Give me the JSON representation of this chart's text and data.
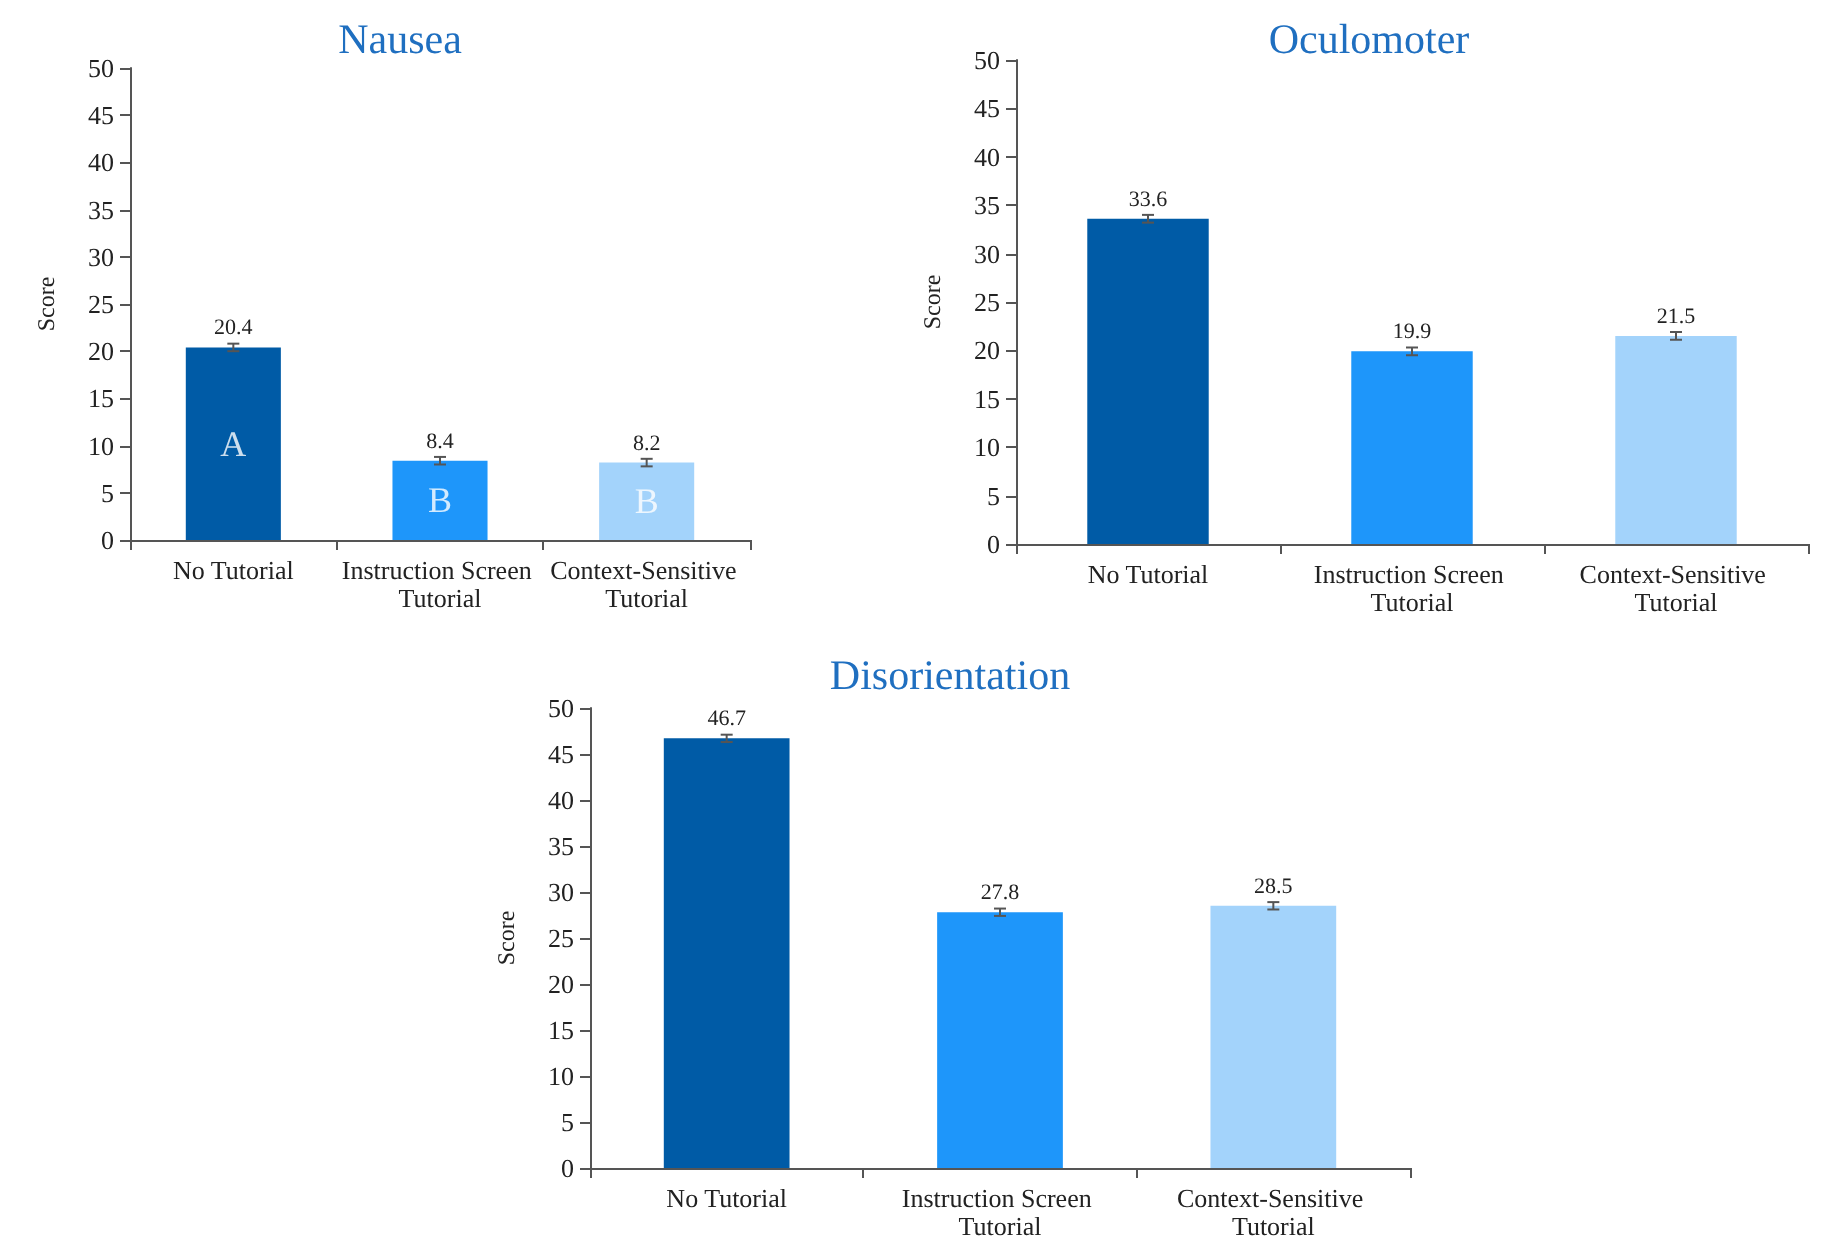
{
  "chart_data": [
    {
      "type": "bar",
      "title": "Nausea",
      "ylabel": "Score",
      "categories": [
        "No Tutorial",
        "Instruction Screen Tutorial",
        "Context-Sensitive Tutorial"
      ],
      "values": [
        20.4,
        8.4,
        8.2
      ],
      "errors": [
        0.4,
        0.4,
        0.4
      ],
      "colors": [
        "#005ba6",
        "#1e96fa",
        "#a3d3fb"
      ],
      "ylim": [
        0,
        50
      ],
      "yticks": [
        0,
        5,
        10,
        15,
        20,
        25,
        30,
        35,
        40,
        45,
        50
      ],
      "data_labels": true,
      "annotations": [
        "A",
        "B",
        "B"
      ]
    },
    {
      "type": "bar",
      "title": "Oculomoter",
      "ylabel": "Score",
      "categories": [
        "No Tutorial",
        "Instruction Screen Tutorial",
        "Context-Sensitive Tutorial"
      ],
      "values": [
        33.6,
        19.9,
        21.5
      ],
      "errors": [
        0.4,
        0.4,
        0.4
      ],
      "colors": [
        "#005ba6",
        "#1e96fa",
        "#a3d3fb"
      ],
      "ylim": [
        0,
        50
      ],
      "yticks": [
        0,
        5,
        10,
        15,
        20,
        25,
        30,
        35,
        40,
        45,
        50
      ],
      "data_labels": true
    },
    {
      "type": "bar",
      "title": "Disorientation",
      "ylabel": "Score",
      "categories": [
        "No Tutorial",
        "Instruction Screen Tutorial",
        "Context-Sensitive Tutorial"
      ],
      "values": [
        46.7,
        27.8,
        28.5
      ],
      "errors": [
        0.4,
        0.4,
        0.4
      ],
      "colors": [
        "#005ba6",
        "#1e96fa",
        "#a3d3fb"
      ],
      "ylim": [
        0,
        50
      ],
      "yticks": [
        0,
        5,
        10,
        15,
        20,
        25,
        30,
        35,
        40,
        45,
        50
      ],
      "data_labels": true
    }
  ]
}
